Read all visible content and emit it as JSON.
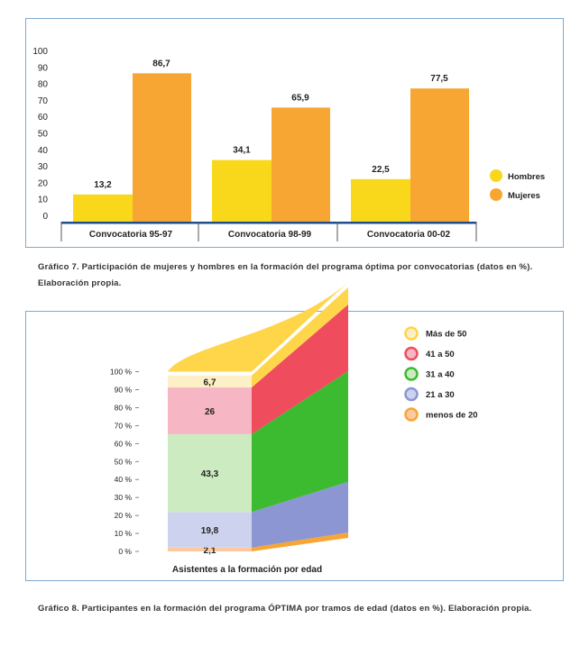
{
  "chart_data": [
    {
      "type": "bar",
      "categories": [
        "Convocatoria 95-97",
        "Convocatoria 98-99",
        "Convocatoria 00-02"
      ],
      "series": [
        {
          "name": "Hombres",
          "values": [
            13.2,
            34.1,
            22.5
          ],
          "color": "#f9d81c"
        },
        {
          "name": "Mujeres",
          "values": [
            86.7,
            65.9,
            77.5
          ],
          "color": "#f7a634"
        }
      ],
      "value_labels": {
        "Hombres": [
          "13,2",
          "34,1",
          "22,5"
        ],
        "Mujeres": [
          "86,7",
          "65,9",
          "77,5"
        ]
      },
      "yticks": [
        "0",
        "10",
        "20",
        "30",
        "40",
        "50",
        "60",
        "70",
        "80",
        "90",
        "100"
      ],
      "ylim": [
        0,
        100
      ],
      "legend_position": "right",
      "grid": false
    },
    {
      "type": "bar",
      "stacked": true,
      "categories": [
        "Asistentes a la formación por edad"
      ],
      "xlabel": "Asistentes a la formación por edad",
      "series": [
        {
          "name": "menos de 20",
          "values": [
            2.1
          ],
          "label": "2,1",
          "color": "#fcc9a0",
          "side": "#f7a634"
        },
        {
          "name": "21 a 30",
          "values": [
            19.8
          ],
          "label": "19,8",
          "color": "#cdd3ee",
          "side": "#8b96d3"
        },
        {
          "name": "31 a 40",
          "values": [
            43.3
          ],
          "label": "43,3",
          "color": "#cdebc0",
          "side": "#3cbb30"
        },
        {
          "name": "41 a 50",
          "values": [
            26
          ],
          "label": "26",
          "color": "#f6b6c4",
          "side": "#ef4d5e"
        },
        {
          "name": "Más de 50",
          "values": [
            6.7
          ],
          "label": "6,7",
          "color": "#fdf0c7",
          "side": "#ffd54a"
        }
      ],
      "legend_order": [
        "Más de 50",
        "41 a 50",
        "31 a 40",
        "21 a 30",
        "menos de 20"
      ],
      "yticks": [
        "0 %",
        "10 %",
        "20 %",
        "30 %",
        "40 %",
        "50 %",
        "60 %",
        "70 %",
        "80 %",
        "90 %",
        "100 %"
      ],
      "ylim": [
        0,
        100
      ],
      "legend_position": "right",
      "grid": false
    }
  ],
  "captions": {
    "chart1": "Gráfico 7. Participación de mujeres y hombres en la formación del programa óptima por convocatorias (datos en %). Elaboración propia.",
    "chart2": "Gráfico 8. Participantes en la formación del programa ÓPTIMA por tramos de edad (datos en %). Elaboración propia."
  },
  "colors": {
    "panel_border": "#7fa8cf",
    "axis_band": "#1f4e8c"
  }
}
